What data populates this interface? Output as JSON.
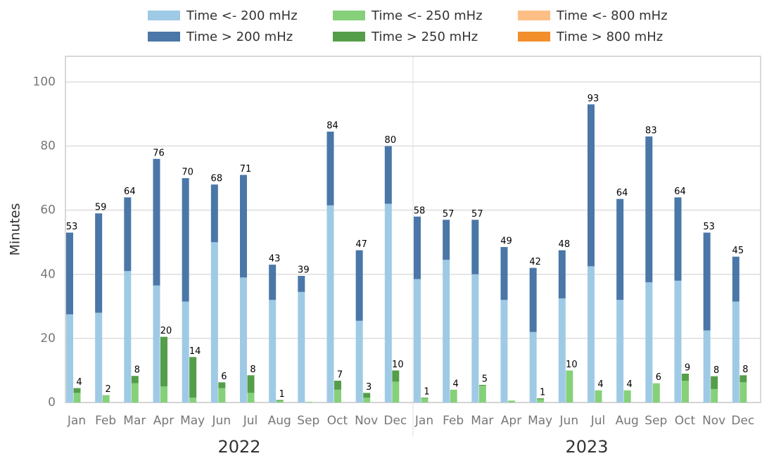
{
  "chart_data": {
    "type": "grouped-stacked-bar",
    "y_label": "Minutes",
    "categories": [
      "Jan",
      "Feb",
      "Mar",
      "Apr",
      "May",
      "Jun",
      "Jul",
      "Aug",
      "Sep",
      "Oct",
      "Nov",
      "Dec",
      "Jan",
      "Feb",
      "Mar",
      "Apr",
      "May",
      "Jun",
      "Jul",
      "Aug",
      "Sep",
      "Oct",
      "Nov",
      "Dec"
    ],
    "groups": [
      "2022",
      "2023"
    ],
    "series": [
      {
        "name": "Time <- 200 mHz",
        "color": "#9fcae6",
        "values": [
          27.5,
          28,
          41,
          36.5,
          31.5,
          50,
          39,
          32,
          34.5,
          61.5,
          25.5,
          62,
          38.5,
          44.5,
          40,
          32,
          22,
          32.5,
          42.5,
          32,
          37.5,
          38,
          22.5,
          31.5
        ]
      },
      {
        "name": "Time > 200 mHz",
        "color": "#4a77a8",
        "values": [
          25.5,
          31,
          23,
          39.5,
          38.5,
          18,
          32,
          11,
          5,
          23,
          22,
          18,
          19.5,
          12.5,
          17,
          16.5,
          20,
          15,
          50.5,
          31.5,
          45.5,
          26,
          30.5,
          14
        ]
      },
      {
        "name": "Time <- 250 mHz",
        "color": "#86d07a",
        "values": [
          3,
          2.3,
          6,
          5,
          1.5,
          4.5,
          3,
          0.5,
          0.2,
          4,
          1.5,
          6.5,
          1.3,
          4,
          5.2,
          0.6,
          1,
          10,
          3.8,
          3.8,
          6,
          6.8,
          4.2,
          6.3
        ]
      },
      {
        "name": "Time > 250 mHz",
        "color": "#559e49",
        "values": [
          1.5,
          0,
          2.3,
          15.5,
          12.7,
          1.8,
          5.5,
          0.3,
          0,
          2.8,
          1.5,
          3.5,
          0.2,
          0,
          0.3,
          0,
          0.3,
          0,
          0,
          0,
          0,
          2.2,
          4,
          2.2
        ]
      },
      {
        "name": "Time <- 800 mHz",
        "color": "#fdbf86",
        "values": [
          0,
          0,
          0,
          0,
          0,
          0,
          0,
          0,
          0,
          0,
          0,
          0,
          0,
          0,
          0,
          0,
          0,
          0,
          0,
          0,
          0,
          0,
          0,
          0
        ]
      },
      {
        "name": "Time > 800 mHz",
        "color": "#f28e2b",
        "values": [
          0,
          0,
          0,
          0,
          0,
          0,
          0,
          0,
          0,
          0,
          0,
          0,
          0,
          0,
          0,
          0,
          0,
          0,
          0,
          0,
          0,
          0,
          0,
          0
        ]
      }
    ],
    "totals": [
      [
        53,
        59,
        64,
        76,
        70,
        68,
        71,
        43,
        39,
        84,
        47,
        80,
        58,
        57,
        57,
        49,
        42,
        48,
        93,
        64,
        83,
        64,
        53,
        45
      ],
      [
        4,
        2,
        8,
        20,
        14,
        6,
        8,
        1,
        null,
        7,
        3,
        10,
        1,
        4,
        5,
        null,
        1,
        10,
        4,
        4,
        6,
        9,
        8,
        8
      ]
    ],
    "ylim": [
      0,
      108
    ],
    "yticks": [
      0,
      20,
      40,
      60,
      80,
      100
    ],
    "grid": true
  }
}
